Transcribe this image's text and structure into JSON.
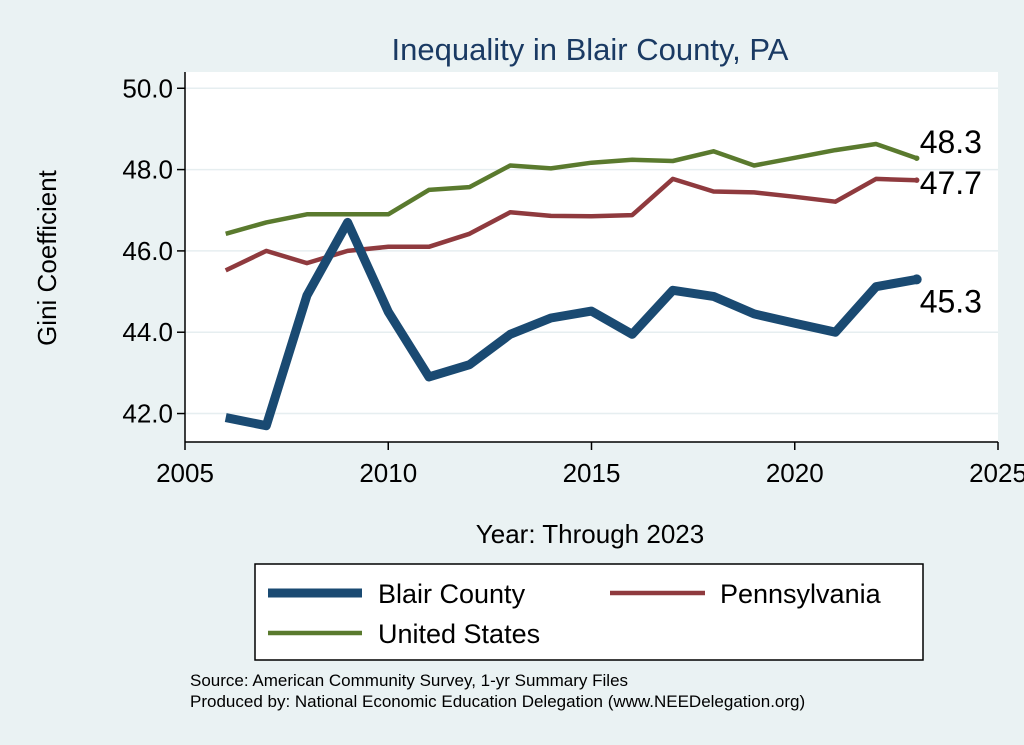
{
  "chart_data": {
    "type": "line",
    "title": "Inequality in Blair County, PA",
    "xlabel": "Year: Through 2023",
    "ylabel": "Gini Coefficient",
    "xlim": [
      2005,
      2025
    ],
    "ylim": [
      41.3,
      50.4
    ],
    "xticks": [
      2005,
      2010,
      2015,
      2020,
      2025
    ],
    "xtick_labels": [
      "2005",
      "2010",
      "2015",
      "2020",
      "2025"
    ],
    "yticks": [
      42,
      44,
      46,
      48,
      50
    ],
    "ytick_labels": [
      "42.0",
      "44.0",
      "46.0",
      "48.0",
      "50.0"
    ],
    "grid": "horizontal",
    "legend_position": "bottom",
    "series": [
      {
        "name": "Blair County",
        "color": "#1a4a72",
        "x": [
          2006,
          2007,
          2008,
          2009,
          2010,
          2011,
          2012,
          2013,
          2014,
          2015,
          2016,
          2017,
          2018,
          2019,
          2020,
          2021,
          2022,
          2023
        ],
        "values": [
          41.9,
          41.7,
          44.9,
          46.7,
          44.5,
          42.9,
          43.2,
          43.95,
          44.35,
          44.52,
          43.95,
          45.03,
          44.88,
          44.45,
          44.22,
          44.0,
          45.12,
          45.3
        ]
      },
      {
        "name": "Pennsylvania",
        "color": "#8f3a3e",
        "x": [
          2006,
          2007,
          2008,
          2009,
          2010,
          2011,
          2012,
          2013,
          2014,
          2015,
          2016,
          2017,
          2018,
          2019,
          2020,
          2021,
          2022,
          2023
        ],
        "values": [
          45.52,
          46.0,
          45.7,
          46.0,
          46.1,
          46.1,
          46.42,
          46.95,
          46.86,
          46.85,
          46.88,
          47.77,
          47.46,
          47.44,
          47.33,
          47.21,
          47.77,
          47.74
        ]
      },
      {
        "name": "United States",
        "color": "#5a7a2e",
        "x": [
          2006,
          2007,
          2008,
          2009,
          2010,
          2011,
          2012,
          2013,
          2014,
          2015,
          2016,
          2017,
          2018,
          2019,
          2020,
          2021,
          2022,
          2023
        ],
        "values": [
          46.42,
          46.7,
          46.9,
          46.9,
          46.9,
          47.5,
          47.57,
          48.1,
          48.03,
          48.17,
          48.24,
          48.21,
          48.45,
          48.1,
          48.29,
          48.48,
          48.63,
          48.28
        ]
      }
    ],
    "end_labels": [
      {
        "series": "United States",
        "text": "48.3"
      },
      {
        "series": "Pennsylvania",
        "text": "47.7"
      },
      {
        "series": "Blair County",
        "text": "45.3"
      }
    ],
    "notes": [
      "Source: American Community Survey, 1-yr Summary Files",
      "Produced by: National Economic Education Delegation (www.NEEDelegation.org)"
    ]
  }
}
